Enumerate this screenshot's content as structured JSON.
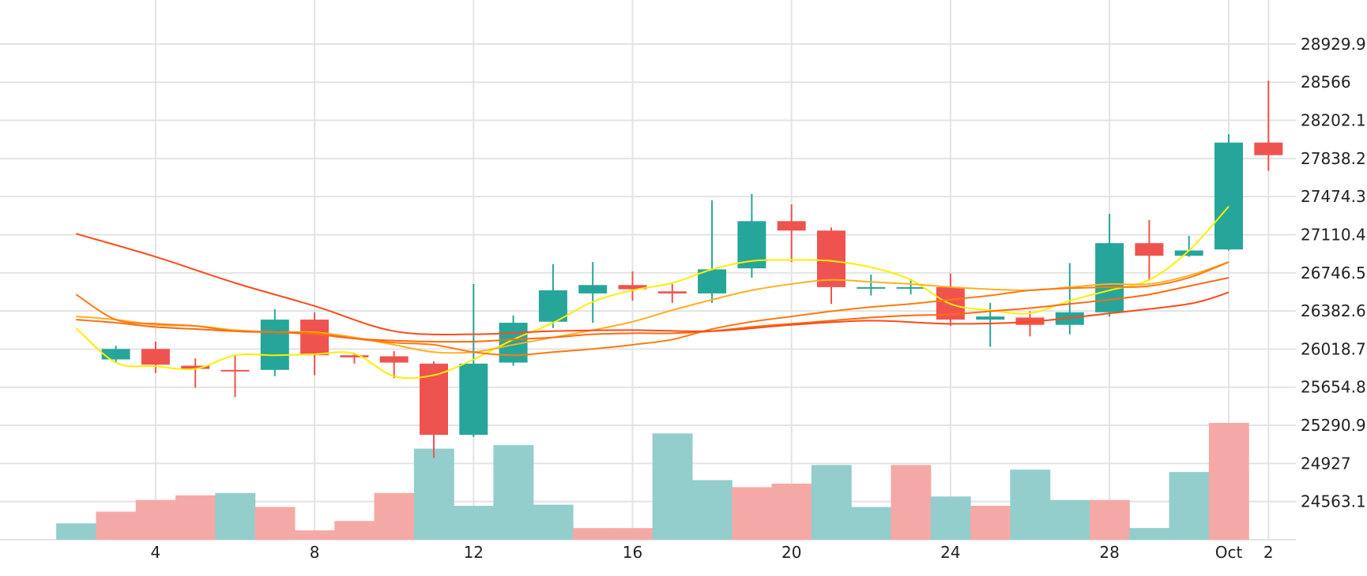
{
  "chart_data": {
    "type": "candlestick",
    "colors": {
      "up": "#26a69a",
      "down": "#ef5350",
      "vol_up": "#93cecc",
      "vol_down": "#f5a9a6",
      "grid": "#e3e3e3",
      "text": "#222222"
    },
    "y_axis": {
      "side": "right",
      "range": [
        24199.2,
        29293.8
      ],
      "ticks": [
        "24563.1",
        "24927",
        "25290.9",
        "25654.8",
        "26018.7",
        "26382.6",
        "26746.5",
        "27110.4",
        "27474.3",
        "27838.2",
        "28202.1",
        "28566",
        "28929.9"
      ]
    },
    "x_axis": {
      "tick_labels": [
        "4",
        "8",
        "12",
        "16",
        "20",
        "24",
        "28",
        "Oct",
        "2"
      ],
      "tick_days": [
        3,
        7,
        11,
        15,
        19,
        23,
        27,
        30,
        31
      ]
    },
    "candles": [
      {
        "date": "Sep 3",
        "o": 25920,
        "h": 26050,
        "l": 25890,
        "c": 26020
      },
      {
        "date": "Sep 4",
        "o": 26020,
        "h": 26090,
        "l": 25790,
        "c": 25870
      },
      {
        "date": "Sep 5",
        "o": 25860,
        "h": 25930,
        "l": 25650,
        "c": 25830
      },
      {
        "date": "Sep 6",
        "o": 25820,
        "h": 25960,
        "l": 25560,
        "c": 25805
      },
      {
        "date": "Sep 7",
        "o": 25820,
        "h": 26400,
        "l": 25760,
        "c": 26300
      },
      {
        "date": "Sep 8",
        "o": 26300,
        "h": 26370,
        "l": 25770,
        "c": 25960
      },
      {
        "date": "Sep 9",
        "o": 25960,
        "h": 25985,
        "l": 25880,
        "c": 25940
      },
      {
        "date": "Sep 10",
        "o": 25950,
        "h": 26000,
        "l": 25740,
        "c": 25890
      },
      {
        "date": "Sep 11",
        "o": 25880,
        "h": 25900,
        "l": 24980,
        "c": 25200
      },
      {
        "date": "Sep 12",
        "o": 25200,
        "h": 26640,
        "l": 25180,
        "c": 25880
      },
      {
        "date": "Sep 13",
        "o": 25890,
        "h": 26340,
        "l": 25860,
        "c": 26270
      },
      {
        "date": "Sep 14",
        "o": 26280,
        "h": 26830,
        "l": 26220,
        "c": 26580
      },
      {
        "date": "Sep 15",
        "o": 26550,
        "h": 26850,
        "l": 26270,
        "c": 26630
      },
      {
        "date": "Sep 16",
        "o": 26630,
        "h": 26760,
        "l": 26480,
        "c": 26590
      },
      {
        "date": "Sep 17",
        "o": 26570,
        "h": 26640,
        "l": 26460,
        "c": 26550
      },
      {
        "date": "Sep 18",
        "o": 26550,
        "h": 27440,
        "l": 26460,
        "c": 26780
      },
      {
        "date": "Sep 19",
        "o": 26790,
        "h": 27500,
        "l": 26700,
        "c": 27240
      },
      {
        "date": "Sep 20",
        "o": 27240,
        "h": 27400,
        "l": 26850,
        "c": 27150
      },
      {
        "date": "Sep 21",
        "o": 27150,
        "h": 27180,
        "l": 26450,
        "c": 26610
      },
      {
        "date": "Sep 22",
        "o": 26595,
        "h": 26730,
        "l": 26530,
        "c": 26610
      },
      {
        "date": "Sep 23",
        "o": 26600,
        "h": 26690,
        "l": 26540,
        "c": 26610
      },
      {
        "date": "Sep 24",
        "o": 26610,
        "h": 26740,
        "l": 26240,
        "c": 26300
      },
      {
        "date": "Sep 25",
        "o": 26300,
        "h": 26460,
        "l": 26040,
        "c": 26330
      },
      {
        "date": "Sep 26",
        "o": 26320,
        "h": 26380,
        "l": 26140,
        "c": 26250
      },
      {
        "date": "Sep 27",
        "o": 26250,
        "h": 26840,
        "l": 26160,
        "c": 26370
      },
      {
        "date": "Sep 28",
        "o": 26370,
        "h": 27310,
        "l": 26330,
        "c": 27030
      },
      {
        "date": "Sep 29",
        "o": 27030,
        "h": 27250,
        "l": 26680,
        "c": 26910
      },
      {
        "date": "Sep 30",
        "o": 26910,
        "h": 27100,
        "l": 26900,
        "c": 26960
      },
      {
        "date": "Oct 1",
        "o": 26970,
        "h": 28070,
        "l": 26960,
        "c": 27990
      },
      {
        "date": "Oct 2",
        "o": 27990,
        "h": 28580,
        "l": 27720,
        "c": 27870
      }
    ],
    "volume": [
      {
        "date": "Sep 2",
        "value": 0.14,
        "direction": "up"
      },
      {
        "date": "Sep 3",
        "value": 0.24,
        "direction": "down"
      },
      {
        "date": "Sep 4",
        "value": 0.34,
        "direction": "down"
      },
      {
        "date": "Sep 5",
        "value": 0.38,
        "direction": "down"
      },
      {
        "date": "Sep 6",
        "value": 0.4,
        "direction": "up"
      },
      {
        "date": "Sep 7",
        "value": 0.28,
        "direction": "down"
      },
      {
        "date": "Sep 8",
        "value": 0.08,
        "direction": "down"
      },
      {
        "date": "Sep 9",
        "value": 0.16,
        "direction": "down"
      },
      {
        "date": "Sep 10",
        "value": 0.4,
        "direction": "down"
      },
      {
        "date": "Sep 11",
        "value": 0.78,
        "direction": "up"
      },
      {
        "date": "Sep 12",
        "value": 0.29,
        "direction": "up"
      },
      {
        "date": "Sep 13",
        "value": 0.81,
        "direction": "up"
      },
      {
        "date": "Sep 14",
        "value": 0.3,
        "direction": "up"
      },
      {
        "date": "Sep 15",
        "value": 0.1,
        "direction": "down"
      },
      {
        "date": "Sep 16",
        "value": 0.1,
        "direction": "down"
      },
      {
        "date": "Sep 17",
        "value": 0.91,
        "direction": "up"
      },
      {
        "date": "Sep 18",
        "value": 0.51,
        "direction": "up"
      },
      {
        "date": "Sep 19",
        "value": 0.45,
        "direction": "down"
      },
      {
        "date": "Sep 20",
        "value": 0.48,
        "direction": "down"
      },
      {
        "date": "Sep 21",
        "value": 0.64,
        "direction": "up"
      },
      {
        "date": "Sep 22",
        "value": 0.28,
        "direction": "up"
      },
      {
        "date": "Sep 23",
        "value": 0.64,
        "direction": "down"
      },
      {
        "date": "Sep 24",
        "value": 0.37,
        "direction": "up"
      },
      {
        "date": "Sep 25",
        "value": 0.29,
        "direction": "down"
      },
      {
        "date": "Sep 26",
        "value": 0.6,
        "direction": "up"
      },
      {
        "date": "Sep 27",
        "value": 0.34,
        "direction": "up"
      },
      {
        "date": "Sep 28",
        "value": 0.34,
        "direction": "down"
      },
      {
        "date": "Sep 29",
        "value": 0.1,
        "direction": "up"
      },
      {
        "date": "Sep 30",
        "value": 0.58,
        "direction": "up"
      },
      {
        "date": "Oct 1",
        "value": 1.0,
        "direction": "down"
      }
    ],
    "moving_averages": [
      {
        "color": "#ffee00",
        "points": [
          [
            "Sep 2",
            26220
          ],
          [
            "Sep 3",
            25890
          ],
          [
            "Sep 4",
            25855
          ],
          [
            "Sep 5",
            25830
          ],
          [
            "Sep 6",
            25960
          ],
          [
            "Sep 7",
            25960
          ],
          [
            "Sep 8",
            25970
          ],
          [
            "Sep 9",
            25975
          ],
          [
            "Sep 10",
            25760
          ],
          [
            "Sep 11",
            25770
          ],
          [
            "Sep 12",
            25920
          ],
          [
            "Sep 13",
            26110
          ],
          [
            "Sep 14",
            26270
          ],
          [
            "Sep 15",
            26470
          ],
          [
            "Sep 16",
            26580
          ],
          [
            "Sep 17",
            26650
          ],
          [
            "Sep 18",
            26780
          ],
          [
            "Sep 19",
            26860
          ],
          [
            "Sep 20",
            26870
          ],
          [
            "Sep 21",
            26860
          ],
          [
            "Sep 22",
            26800
          ],
          [
            "Sep 23",
            26680
          ],
          [
            "Sep 24",
            26450
          ],
          [
            "Sep 25",
            26390
          ],
          [
            "Sep 26",
            26360
          ],
          [
            "Sep 27",
            26480
          ],
          [
            "Sep 28",
            26580
          ],
          [
            "Sep 29",
            26680
          ],
          [
            "Sep 30",
            26960
          ],
          [
            "Oct 1",
            27380
          ]
        ]
      },
      {
        "color": "#ffb020",
        "points": [
          [
            "Sep 2",
            26330
          ],
          [
            "Sep 3",
            26300
          ],
          [
            "Sep 4",
            26250
          ],
          [
            "Sep 5",
            26240
          ],
          [
            "Sep 6",
            26200
          ],
          [
            "Sep 7",
            26180
          ],
          [
            "Sep 8",
            26180
          ],
          [
            "Sep 9",
            26130
          ],
          [
            "Sep 10",
            26060
          ],
          [
            "Sep 11",
            25990
          ],
          [
            "Sep 12",
            25990
          ],
          [
            "Sep 13",
            26060
          ],
          [
            "Sep 14",
            26130
          ],
          [
            "Sep 15",
            26200
          ],
          [
            "Sep 16",
            26280
          ],
          [
            "Sep 17",
            26390
          ],
          [
            "Sep 18",
            26490
          ],
          [
            "Sep 19",
            26580
          ],
          [
            "Sep 20",
            26640
          ],
          [
            "Sep 21",
            26680
          ],
          [
            "Sep 22",
            26660
          ],
          [
            "Sep 23",
            26640
          ],
          [
            "Sep 24",
            26610
          ],
          [
            "Sep 25",
            26590
          ],
          [
            "Sep 26",
            26580
          ],
          [
            "Sep 27",
            26610
          ],
          [
            "Sep 28",
            26640
          ],
          [
            "Sep 29",
            26640
          ],
          [
            "Sep 30",
            26720
          ],
          [
            "Oct 1",
            26850
          ]
        ]
      },
      {
        "color": "#ff7a10",
        "points": [
          [
            "Sep 2",
            26540
          ],
          [
            "Sep 3",
            26300
          ],
          [
            "Sep 4",
            26260
          ],
          [
            "Sep 5",
            26240
          ],
          [
            "Sep 6",
            26190
          ],
          [
            "Sep 7",
            26180
          ],
          [
            "Sep 8",
            26170
          ],
          [
            "Sep 9",
            26120
          ],
          [
            "Sep 10",
            26080
          ],
          [
            "Sep 11",
            26060
          ],
          [
            "Sep 12",
            25990
          ],
          [
            "Sep 13",
            25960
          ],
          [
            "Sep 14",
            25990
          ],
          [
            "Sep 15",
            26020
          ],
          [
            "Sep 16",
            26060
          ],
          [
            "Sep 17",
            26110
          ],
          [
            "Sep 18",
            26210
          ],
          [
            "Sep 19",
            26280
          ],
          [
            "Sep 20",
            26330
          ],
          [
            "Sep 21",
            26380
          ],
          [
            "Sep 22",
            26420
          ],
          [
            "Sep 23",
            26450
          ],
          [
            "Sep 24",
            26490
          ],
          [
            "Sep 25",
            26530
          ],
          [
            "Sep 26",
            26580
          ],
          [
            "Sep 27",
            26600
          ],
          [
            "Sep 28",
            26610
          ],
          [
            "Sep 29",
            26620
          ],
          [
            "Sep 30",
            26700
          ],
          [
            "Oct 1",
            26850
          ]
        ]
      },
      {
        "color": "#ff6a10",
        "points": [
          [
            "Sep 2",
            26300
          ],
          [
            "Sep 3",
            26270
          ],
          [
            "Sep 4",
            26230
          ],
          [
            "Sep 5",
            26210
          ],
          [
            "Sep 6",
            26190
          ],
          [
            "Sep 7",
            26180
          ],
          [
            "Sep 8",
            26160
          ],
          [
            "Sep 9",
            26120
          ],
          [
            "Sep 10",
            26100
          ],
          [
            "Sep 11",
            26090
          ],
          [
            "Sep 12",
            26090
          ],
          [
            "Sep 13",
            26110
          ],
          [
            "Sep 14",
            26130
          ],
          [
            "Sep 15",
            26160
          ],
          [
            "Sep 16",
            26170
          ],
          [
            "Sep 17",
            26170
          ],
          [
            "Sep 18",
            26190
          ],
          [
            "Sep 19",
            26230
          ],
          [
            "Sep 20",
            26260
          ],
          [
            "Sep 21",
            26290
          ],
          [
            "Sep 22",
            26320
          ],
          [
            "Sep 23",
            26340
          ],
          [
            "Sep 24",
            26350
          ],
          [
            "Sep 25",
            26380
          ],
          [
            "Sep 26",
            26410
          ],
          [
            "Sep 27",
            26450
          ],
          [
            "Sep 28",
            26490
          ],
          [
            "Sep 29",
            26540
          ],
          [
            "Sep 30",
            26620
          ],
          [
            "Oct 1",
            26700
          ]
        ]
      },
      {
        "color": "#ff4a1a",
        "points": [
          [
            "Sep 2",
            27120
          ],
          [
            "Sep 4",
            26900
          ],
          [
            "Sep 6",
            26650
          ],
          [
            "Sep 8",
            26430
          ],
          [
            "Sep 10",
            26190
          ],
          [
            "Sep 12",
            26160
          ],
          [
            "Sep 14",
            26190
          ],
          [
            "Sep 16",
            26200
          ],
          [
            "Sep 18",
            26190
          ],
          [
            "Sep 20",
            26250
          ],
          [
            "Sep 22",
            26290
          ],
          [
            "Sep 24",
            26260
          ],
          [
            "Sep 26",
            26280
          ],
          [
            "Sep 28",
            26360
          ],
          [
            "Sep 30",
            26450
          ],
          [
            "Oct 1",
            26560
          ]
        ]
      }
    ]
  }
}
